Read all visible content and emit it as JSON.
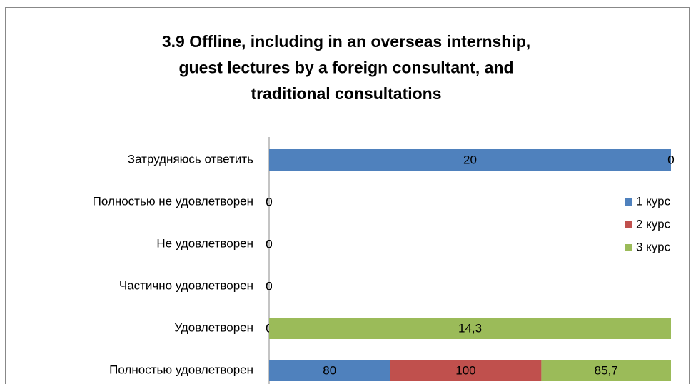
{
  "chart_data": {
    "type": "bar",
    "orientation": "horizontal",
    "stacking": "percent",
    "title": "3.9 Offline, including in an overseas internship, guest lectures by a foreign consultant, and traditional consultations",
    "categories": [
      "Затрудняюсь ответить",
      "Полностью не удовлетворен",
      "Не удовлетворен",
      "Частично удовлетворен",
      "Удовлетворен",
      "Полностью удовлетворен"
    ],
    "series": [
      {
        "name": "1 курс",
        "color": "#4f81bd",
        "values": [
          20,
          0,
          0,
          0,
          0,
          80
        ]
      },
      {
        "name": "2 курс",
        "color": "#c0504d",
        "values": [
          0,
          0,
          0,
          0,
          0,
          100
        ]
      },
      {
        "name": "3 курс",
        "color": "#9bbb59",
        "values": [
          0,
          0,
          0,
          0,
          14.3,
          85.7
        ],
        "value_labels": [
          "0",
          "0",
          "0",
          "0",
          "14,3",
          "85,7"
        ]
      }
    ],
    "legend": "right"
  }
}
